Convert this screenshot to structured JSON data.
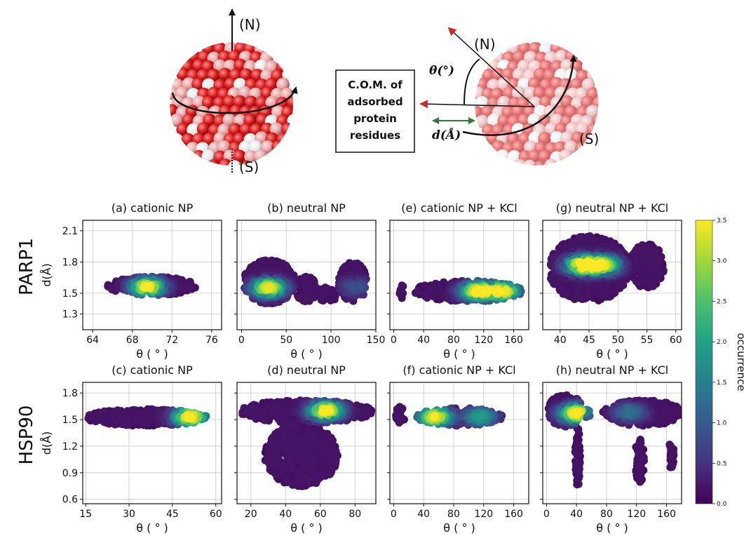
{
  "colors": {
    "accent_arrow_red": "#d62728",
    "accent_arrow_green": "#2e7d32"
  },
  "diagram": {
    "left_north": "(N)",
    "left_south": "(S)",
    "right_north": "(N)",
    "right_south": "(S)",
    "theta_label": "θ(°)",
    "d_label": "d(Å)",
    "box_lines": [
      "C.O.M. of",
      "adsorbed",
      "protein",
      "residues"
    ]
  },
  "rows": [
    "PARP1",
    "HSP90"
  ],
  "colorbar": {
    "label": "occurrence",
    "min": 0.0,
    "max": 3.5,
    "ticks": [
      "0.0",
      "0.5",
      "1.0",
      "1.5",
      "2.0",
      "2.5",
      "3.0",
      "3.5"
    ]
  },
  "chart_data": [
    {
      "type": "scatter",
      "title": "(a) cationic NP",
      "xlabel": "θ ( ° )",
      "ylabel": "d(Å)",
      "xlim": [
        63,
        77
      ],
      "ylim": [
        1.15,
        2.2
      ],
      "xticks": [
        "64",
        "68",
        "72",
        "76"
      ],
      "yticks": [
        "1.3",
        "1.5",
        "1.8",
        "2.1"
      ],
      "grid": true,
      "clusters": [
        {
          "x_range": [
            65.5,
            74.5
          ],
          "y_range": [
            1.48,
            1.66
          ],
          "peaks": [
            {
              "x": 69.5,
              "y": 1.56,
              "occurrence": 3.4
            }
          ]
        }
      ]
    },
    {
      "type": "scatter",
      "title": "(b) neutral NP",
      "xlabel": "θ ( ° )",
      "ylabel": "",
      "xlim": [
        -5,
        150
      ],
      "ylim": [
        1.15,
        2.2
      ],
      "xticks": [
        "0",
        "50",
        "100",
        "150"
      ],
      "yticks": [
        "1.3",
        "1.5",
        "1.8",
        "2.1"
      ],
      "grid": true,
      "clusters": [
        {
          "x_range": [
            2,
            60
          ],
          "y_range": [
            1.4,
            1.82
          ],
          "peaks": [
            {
              "x": 30,
              "y": 1.55,
              "occurrence": 3.3
            }
          ]
        },
        {
          "x_range": [
            60,
            85
          ],
          "y_range": [
            1.42,
            1.66
          ],
          "peaks": []
        },
        {
          "x_range": [
            85,
            108
          ],
          "y_range": [
            1.42,
            1.56
          ],
          "peaks": []
        },
        {
          "x_range": [
            108,
            140
          ],
          "y_range": [
            1.42,
            1.8
          ],
          "peaks": [
            {
              "x": 128,
              "y": 1.56,
              "occurrence": 0.7
            }
          ]
        }
      ]
    },
    {
      "type": "scatter",
      "title": "(e) cationic NP + KCl",
      "xlabel": "θ ( ° )",
      "ylabel": "",
      "xlim": [
        -5,
        180
      ],
      "ylim": [
        1.15,
        2.2
      ],
      "xticks": [
        "0",
        "40",
        "80",
        "120",
        "160"
      ],
      "yticks": [
        "1.3",
        "1.5",
        "1.8",
        "2.1"
      ],
      "grid": true,
      "clusters": [
        {
          "x_range": [
            7,
            13
          ],
          "y_range": [
            1.45,
            1.6
          ],
          "peaks": []
        },
        {
          "x_range": [
            28,
            172
          ],
          "y_range": [
            1.42,
            1.62
          ],
          "peaks": [
            {
              "x": 112,
              "y": 1.52,
              "occurrence": 3.4
            },
            {
              "x": 146,
              "y": 1.52,
              "occurrence": 3.2
            }
          ]
        }
      ]
    },
    {
      "type": "scatter",
      "title": "(g) neutral NP + KCl",
      "xlabel": "θ ( ° )",
      "ylabel": "",
      "xlim": [
        37,
        61
      ],
      "ylim": [
        1.15,
        2.2
      ],
      "xticks": [
        "40",
        "45",
        "50",
        "55",
        "60"
      ],
      "yticks": [
        "1.3",
        "1.5",
        "1.8",
        "2.1"
      ],
      "grid": true,
      "clusters": [
        {
          "x_range": [
            38,
            52
          ],
          "y_range": [
            1.42,
            2.05
          ],
          "peaks": [
            {
              "x": 43.8,
              "y": 1.77,
              "occurrence": 3.5
            },
            {
              "x": 47.4,
              "y": 1.77,
              "occurrence": 3.0
            }
          ]
        },
        {
          "x_range": [
            52,
            58
          ],
          "y_range": [
            1.55,
            1.98
          ],
          "peaks": []
        }
      ]
    },
    {
      "type": "scatter",
      "title": "(c) cationic NP",
      "xlabel": "θ ( ° )",
      "ylabel": "d(Å)",
      "xlim": [
        14,
        62
      ],
      "ylim": [
        0.55,
        1.92
      ],
      "xticks": [
        "15",
        "30",
        "45",
        "60"
      ],
      "yticks": [
        "0.6",
        "0.9",
        "1.2",
        "1.5",
        "1.8"
      ],
      "grid": true,
      "clusters": [
        {
          "x_range": [
            15,
            57
          ],
          "y_range": [
            1.43,
            1.62
          ],
          "peaks": [
            {
              "x": 51,
              "y": 1.53,
              "occurrence": 3.5
            }
          ]
        }
      ]
    },
    {
      "type": "scatter",
      "title": "(d) neutral NP",
      "xlabel": "θ ( ° )",
      "ylabel": "",
      "xlim": [
        12,
        92
      ],
      "ylim": [
        0.55,
        1.92
      ],
      "xticks": [
        "20",
        "40",
        "60",
        "80"
      ],
      "yticks": [
        "0.6",
        "0.9",
        "1.2",
        "1.5",
        "1.8"
      ],
      "grid": true,
      "clusters": [
        {
          "x_range": [
            14,
            90
          ],
          "y_range": [
            1.46,
            1.72
          ],
          "peaks": [
            {
              "x": 63,
              "y": 1.6,
              "occurrence": 3.5
            }
          ]
        },
        {
          "x_range": [
            28,
            70
          ],
          "y_range": [
            0.74,
            1.45
          ],
          "peaks": []
        }
      ]
    },
    {
      "type": "scatter",
      "title": "(f) cationic NP + KCl",
      "xlabel": "θ ( ° )",
      "ylabel": "",
      "xlim": [
        -5,
        180
      ],
      "ylim": [
        0.55,
        1.92
      ],
      "xticks": [
        "0",
        "40",
        "80",
        "120",
        "160"
      ],
      "yticks": [
        "0.6",
        "0.9",
        "1.2",
        "1.5",
        "1.8"
      ],
      "grid": true,
      "clusters": [
        {
          "x_range": [
            2,
            15
          ],
          "y_range": [
            1.45,
            1.65
          ],
          "peaks": []
        },
        {
          "x_range": [
            30,
            145
          ],
          "y_range": [
            1.43,
            1.63
          ],
          "peaks": [
            {
              "x": 55,
              "y": 1.53,
              "occurrence": 3.3
            },
            {
              "x": 115,
              "y": 1.53,
              "occurrence": 1.8
            }
          ]
        }
      ]
    },
    {
      "type": "scatter",
      "title": "(h) neutral NP + KCl",
      "xlabel": "θ ( ° )",
      "ylabel": "",
      "xlim": [
        -5,
        180
      ],
      "ylim": [
        0.55,
        1.92
      ],
      "xticks": [
        "0",
        "40",
        "80",
        "120",
        "160"
      ],
      "yticks": [
        "0.6",
        "0.9",
        "1.2",
        "1.5",
        "1.8"
      ],
      "grid": true,
      "clusters": [
        {
          "x_range": [
            2,
            48
          ],
          "y_range": [
            1.42,
            1.78
          ],
          "peaks": [
            {
              "x": 40,
              "y": 1.57,
              "occurrence": 3.5
            }
          ]
        },
        {
          "x_range": [
            38,
            45
          ],
          "y_range": [
            0.74,
            1.42
          ],
          "peaks": []
        },
        {
          "x_range": [
            50,
            60
          ],
          "y_range": [
            1.52,
            1.66
          ],
          "peaks": [
            {
              "x": 55,
              "y": 1.6,
              "occurrence": 1.3
            }
          ]
        },
        {
          "x_range": [
            75,
            180
          ],
          "y_range": [
            1.43,
            1.72
          ],
          "peaks": [
            {
              "x": 110,
              "y": 1.58,
              "occurrence": 1.1
            }
          ]
        },
        {
          "x_range": [
            118,
            130
          ],
          "y_range": [
            0.78,
            1.3
          ],
          "peaks": []
        },
        {
          "x_range": [
            162,
            170
          ],
          "y_range": [
            0.95,
            1.25
          ],
          "peaks": []
        }
      ]
    }
  ]
}
